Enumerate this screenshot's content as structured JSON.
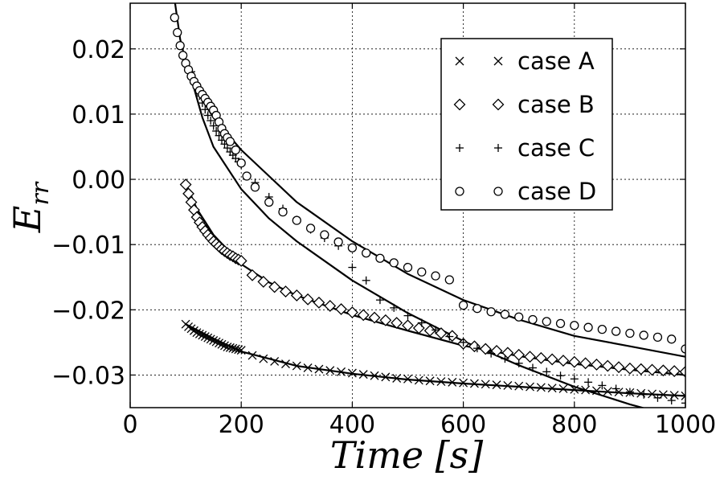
{
  "chart_data": {
    "type": "scatter",
    "title": "",
    "xlabel": "Time [s]",
    "ylabel": "E_rr",
    "ylabel_main": "E",
    "ylabel_sub": "rr",
    "xlim": [
      0,
      1000
    ],
    "ylim": [
      -0.035,
      0.027
    ],
    "xticks": [
      0,
      200,
      400,
      600,
      800,
      1000
    ],
    "xtick_labels": [
      "0",
      "200",
      "400",
      "600",
      "800",
      "1000"
    ],
    "yticks": [
      0.02,
      0.01,
      0.0,
      -0.01,
      -0.02,
      -0.03
    ],
    "ytick_labels": [
      "0.02",
      "0.01",
      "0.00",
      "−0.01",
      "−0.02",
      "−0.03"
    ],
    "grid": true,
    "legend_position": "top-right",
    "fit_curves": [
      {
        "series": "case A",
        "x": [
          100,
          150,
          200,
          300,
          400,
          500,
          600,
          700,
          800,
          900,
          1000
        ],
        "y": [
          -0.0222,
          -0.0244,
          -0.0264,
          -0.0286,
          -0.0298,
          -0.0307,
          -0.0313,
          -0.0318,
          -0.0323,
          -0.0328,
          -0.0332
        ]
      },
      {
        "series": "case B",
        "x": [
          100,
          120,
          150,
          200,
          250,
          300,
          400,
          500,
          600,
          700,
          800,
          900,
          1000
        ],
        "y": [
          -0.0006,
          -0.0045,
          -0.0085,
          -0.013,
          -0.0158,
          -0.0178,
          -0.0208,
          -0.0232,
          -0.0255,
          -0.0271,
          -0.0283,
          -0.0292,
          -0.03
        ]
      },
      {
        "series": "case C",
        "x": [
          110,
          130,
          150,
          200,
          250,
          300,
          400,
          500,
          600,
          700,
          800,
          900,
          1000
        ],
        "y": [
          0.0155,
          0.0095,
          0.005,
          -0.0015,
          -0.006,
          -0.0095,
          -0.0155,
          -0.0205,
          -0.0248,
          -0.0285,
          -0.0318,
          -0.0345,
          -0.0368
        ]
      },
      {
        "series": "case D",
        "x": [
          80,
          90,
          100,
          120,
          150,
          200,
          250,
          300,
          400,
          500,
          600,
          700,
          800,
          900,
          1000
        ],
        "y": [
          0.0275,
          0.0215,
          0.018,
          0.0135,
          0.0095,
          0.0045,
          0.0005,
          -0.0035,
          -0.0095,
          -0.0145,
          -0.0185,
          -0.0215,
          -0.024,
          -0.0256,
          -0.0272
        ]
      }
    ],
    "series": [
      {
        "name": "case A",
        "marker": "x",
        "x": [
          100,
          105,
          110,
          115,
          120,
          125,
          130,
          135,
          140,
          145,
          150,
          155,
          160,
          165,
          170,
          175,
          180,
          185,
          190,
          195,
          200,
          220,
          240,
          260,
          280,
          300,
          320,
          340,
          360,
          380,
          400,
          420,
          440,
          460,
          480,
          500,
          520,
          540,
          560,
          580,
          600,
          620,
          640,
          660,
          680,
          700,
          720,
          740,
          760,
          780,
          800,
          820,
          840,
          860,
          880,
          900,
          920,
          940,
          960,
          980,
          1000
        ],
        "y": [
          -0.0222,
          -0.0226,
          -0.0229,
          -0.0232,
          -0.0235,
          -0.0237,
          -0.0239,
          -0.0241,
          -0.0243,
          -0.0245,
          -0.0247,
          -0.0249,
          -0.0251,
          -0.0253,
          -0.0255,
          -0.0257,
          -0.0258,
          -0.0259,
          -0.026,
          -0.0261,
          -0.0262,
          -0.027,
          -0.0275,
          -0.0279,
          -0.0283,
          -0.0286,
          -0.0289,
          -0.0291,
          -0.0293,
          -0.0295,
          -0.0297,
          -0.0299,
          -0.0301,
          -0.0303,
          -0.0305,
          -0.0306,
          -0.0308,
          -0.0309,
          -0.031,
          -0.0311,
          -0.0312,
          -0.0313,
          -0.0314,
          -0.0315,
          -0.0316,
          -0.0317,
          -0.0318,
          -0.0319,
          -0.032,
          -0.0321,
          -0.0322,
          -0.0323,
          -0.0324,
          -0.0325,
          -0.0326,
          -0.0327,
          -0.0328,
          -0.0329,
          -0.033,
          -0.0331,
          -0.0332
        ]
      },
      {
        "name": "case B",
        "marker": "diamond",
        "x": [
          100,
          105,
          110,
          115,
          120,
          125,
          130,
          135,
          140,
          145,
          150,
          155,
          160,
          165,
          170,
          175,
          180,
          185,
          190,
          195,
          200,
          220,
          240,
          260,
          280,
          300,
          320,
          340,
          360,
          380,
          400,
          420,
          440,
          460,
          480,
          500,
          520,
          540,
          560,
          580,
          600,
          620,
          640,
          660,
          680,
          700,
          720,
          740,
          760,
          780,
          800,
          820,
          840,
          860,
          880,
          900,
          920,
          940,
          960,
          980,
          1000
        ],
        "y": [
          -0.0008,
          -0.0022,
          -0.0035,
          -0.0047,
          -0.0058,
          -0.0066,
          -0.0073,
          -0.0079,
          -0.0085,
          -0.009,
          -0.0095,
          -0.0099,
          -0.0103,
          -0.0107,
          -0.011,
          -0.0113,
          -0.0116,
          -0.0118,
          -0.0121,
          -0.0123,
          -0.0125,
          -0.0147,
          -0.0157,
          -0.0165,
          -0.0172,
          -0.0178,
          -0.0184,
          -0.0189,
          -0.0194,
          -0.0199,
          -0.0204,
          -0.0208,
          -0.0212,
          -0.0216,
          -0.022,
          -0.0224,
          -0.0228,
          -0.0232,
          -0.0236,
          -0.024,
          -0.0252,
          -0.0256,
          -0.026,
          -0.0263,
          -0.0266,
          -0.0269,
          -0.0272,
          -0.0274,
          -0.0276,
          -0.0278,
          -0.028,
          -0.0282,
          -0.0284,
          -0.0286,
          -0.0288,
          -0.029,
          -0.0291,
          -0.0292,
          -0.0293,
          -0.0294,
          -0.0295
        ]
      },
      {
        "name": "case C",
        "marker": "plus",
        "x": [
          110,
          115,
          120,
          125,
          130,
          135,
          140,
          145,
          150,
          155,
          160,
          165,
          170,
          175,
          180,
          185,
          190,
          195,
          200,
          225,
          250,
          275,
          300,
          325,
          350,
          375,
          400,
          425,
          450,
          475,
          500,
          525,
          550,
          575,
          600,
          625,
          650,
          675,
          700,
          725,
          750,
          775,
          800,
          825,
          850,
          875,
          900,
          925,
          950,
          975,
          1000
        ],
        "y": [
          0.0165,
          0.0152,
          0.014,
          0.0128,
          0.0117,
          0.0107,
          0.0098,
          0.009,
          0.0082,
          0.0074,
          0.0067,
          0.006,
          0.0054,
          0.0048,
          0.0042,
          0.0037,
          0.0032,
          0.0027,
          0.0022,
          -0.0005,
          -0.0027,
          -0.0045,
          -0.0062,
          -0.0077,
          -0.009,
          -0.0102,
          -0.0135,
          -0.0155,
          -0.0185,
          -0.0197,
          -0.0209,
          -0.022,
          -0.0231,
          -0.0241,
          -0.025,
          -0.0259,
          -0.0267,
          -0.0275,
          -0.0282,
          -0.0289,
          -0.0295,
          -0.0301,
          -0.0306,
          -0.0311,
          -0.0316,
          -0.0321,
          -0.0326,
          -0.033,
          -0.0335,
          -0.0339,
          -0.0343
        ]
      },
      {
        "name": "case D",
        "marker": "circle",
        "x": [
          80,
          85,
          90,
          95,
          100,
          105,
          110,
          115,
          120,
          125,
          130,
          135,
          140,
          145,
          150,
          155,
          160,
          165,
          170,
          175,
          180,
          190,
          200,
          210,
          225,
          250,
          275,
          300,
          325,
          350,
          375,
          400,
          425,
          450,
          475,
          500,
          525,
          550,
          575,
          600,
          625,
          650,
          675,
          700,
          725,
          750,
          775,
          800,
          825,
          850,
          875,
          900,
          925,
          950,
          975,
          1000
        ],
        "y": [
          0.0248,
          0.0225,
          0.0205,
          0.019,
          0.0178,
          0.0168,
          0.0158,
          0.015,
          0.0143,
          0.0136,
          0.013,
          0.0124,
          0.0118,
          0.0112,
          0.0106,
          0.0098,
          0.0088,
          0.0078,
          0.007,
          0.0064,
          0.0058,
          0.0045,
          0.0025,
          0.0005,
          -0.0012,
          -0.0035,
          -0.005,
          -0.0063,
          -0.0075,
          -0.0085,
          -0.0096,
          -0.0105,
          -0.0113,
          -0.0121,
          -0.0128,
          -0.0135,
          -0.0142,
          -0.0148,
          -0.0154,
          -0.0193,
          -0.0198,
          -0.0203,
          -0.0207,
          -0.0211,
          -0.0215,
          -0.0218,
          -0.0221,
          -0.0224,
          -0.0227,
          -0.023,
          -0.0233,
          -0.0236,
          -0.0239,
          -0.0242,
          -0.0245,
          -0.026
        ]
      }
    ]
  }
}
